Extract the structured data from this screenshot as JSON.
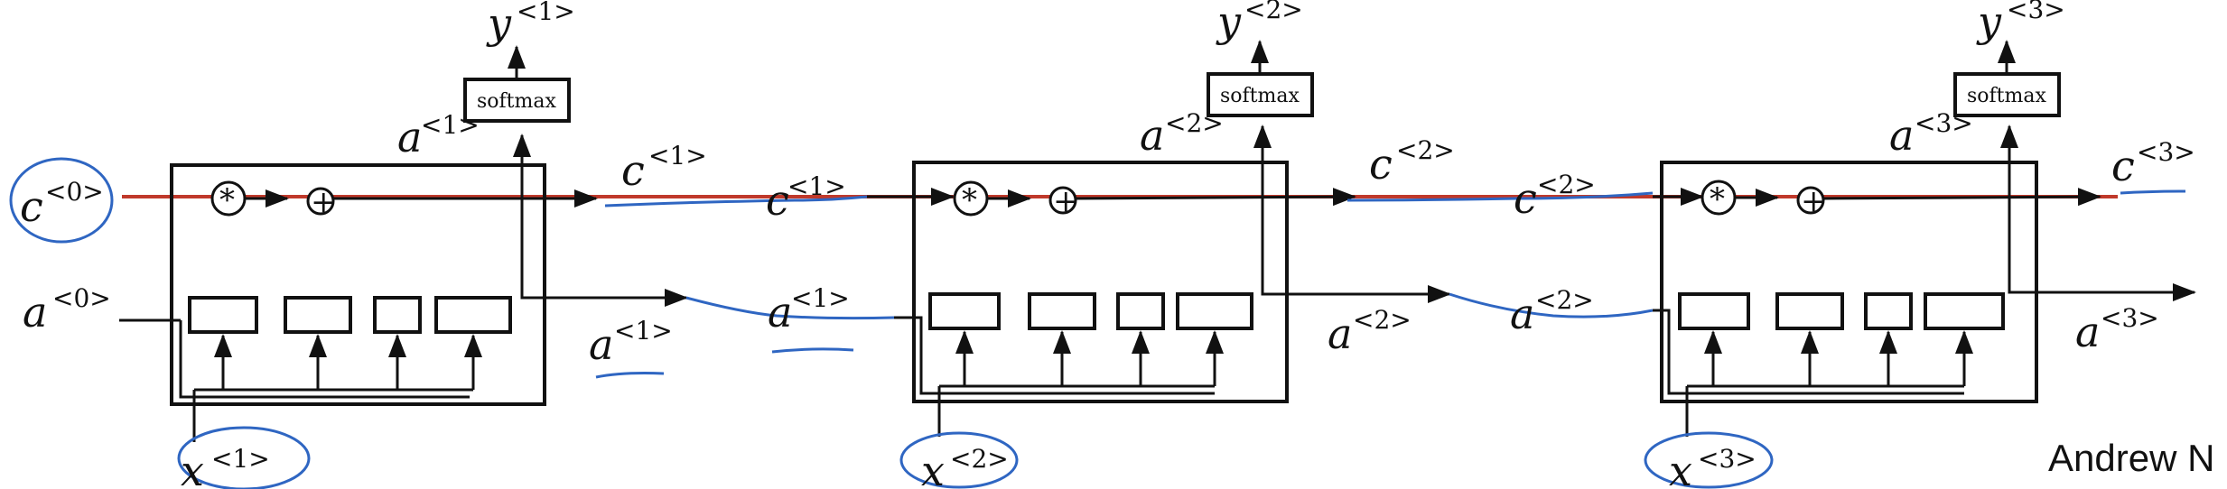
{
  "diagram": {
    "credit": "Andrew N",
    "colors": {
      "ink": "#111111",
      "red_line": "#c0392b",
      "blue_ink": "#2f66c2"
    },
    "cells": [
      {
        "softmax_label": "softmax",
        "y_out": {
          "base": "y",
          "sup": "<1>"
        },
        "a_top": {
          "base": "a",
          "sup": "<1>"
        },
        "c_out": {
          "base": "c",
          "sup": "<1>"
        },
        "a_out": {
          "base": "a",
          "sup": "<1>"
        },
        "x_in": {
          "base": "x",
          "sup": "<1>"
        },
        "mult_symbol": "*",
        "add_symbol": "+"
      },
      {
        "softmax_label": "softmax",
        "y_out": {
          "base": "y",
          "sup": "<2>"
        },
        "a_top": {
          "base": "a",
          "sup": "<2>"
        },
        "c_out": {
          "base": "c",
          "sup": "<2>"
        },
        "a_out": {
          "base": "a",
          "sup": "<2>"
        },
        "x_in": {
          "base": "x",
          "sup": "<2>"
        },
        "mult_symbol": "*",
        "add_symbol": "+"
      },
      {
        "softmax_label": "softmax",
        "y_out": {
          "base": "y",
          "sup": "<3>"
        },
        "a_top": {
          "base": "a",
          "sup": "<3>"
        },
        "c_out": {
          "base": "c",
          "sup": "<3>"
        },
        "a_out": {
          "base": "a",
          "sup": "<3>"
        },
        "x_in": {
          "base": "x",
          "sup": "<3>"
        },
        "mult_symbol": "*",
        "add_symbol": "+"
      }
    ],
    "c0": {
      "base": "c",
      "sup": "<0>"
    },
    "a0": {
      "base": "a",
      "sup": "<0>"
    },
    "c_in_2": {
      "base": "c",
      "sup": "<1>"
    },
    "a_in_2": {
      "base": "a",
      "sup": "<1>"
    },
    "c_in_3": {
      "base": "c",
      "sup": "<2>"
    },
    "a_in_3": {
      "base": "a",
      "sup": "<2>"
    }
  }
}
